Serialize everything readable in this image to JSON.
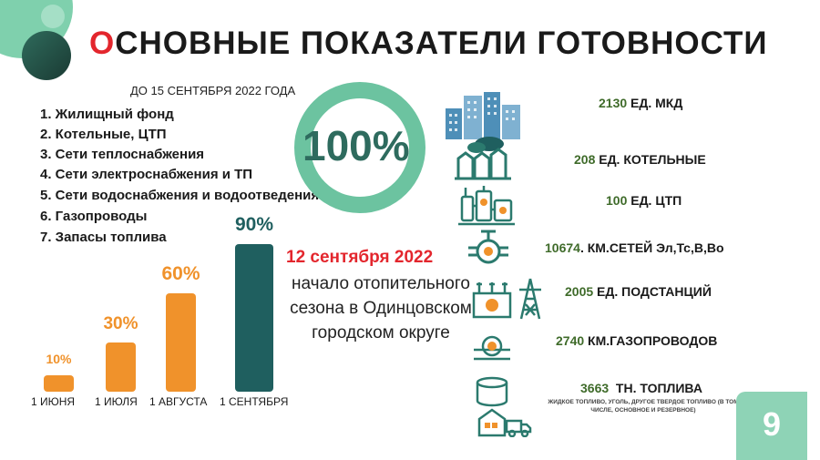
{
  "title": {
    "first_letter": "О",
    "rest": "СНОВНЫЕ ПОКАЗАТЕЛИ ГОТОВНОСТИ"
  },
  "subtitle": "ДО 15 СЕНТЯБРЯ  2022 ГОДА",
  "readiness_list": [
    "1. Жилищный фонд",
    "2. Котельные, ЦТП",
    "3. Сети теплоснабжения",
    "4. Сети электроснабжения и ТП",
    "5. Сети водоснабжения и водоотведения",
    "6. Газопроводы",
    "7. Запасы топлива"
  ],
  "donut": {
    "label": "100%",
    "value": 100
  },
  "colors": {
    "accent_red": "#e3262d",
    "orange": "#f0922b",
    "teal_dark": "#1f5f5f",
    "green_light": "#8ed3b6",
    "green_text": "#3f6b2a"
  },
  "chart_data": {
    "type": "bar",
    "categories": [
      "1 ИЮНЯ",
      "1 ИЮЛЯ",
      "1 АВГУСТА",
      "1 СЕНТЯБРЯ"
    ],
    "values": [
      10,
      30,
      60,
      90
    ],
    "value_labels": [
      "10%",
      "30%",
      "60%",
      "90%"
    ],
    "colors": [
      "#f0922b",
      "#f0922b",
      "#f0922b",
      "#1f5f5f"
    ]
  },
  "heating_start": {
    "date": "12 сентября 2022",
    "text": "начало отопительного сезона в Одинцовском городском округе"
  },
  "stats": [
    {
      "icon": "buildings-icon",
      "number": "2130",
      "label": " ЕД. МКД"
    },
    {
      "icon": "boiler-house-icon",
      "number": "208",
      "label": " ЕД. КОТЕЛЬНЫЕ"
    },
    {
      "icon": "heat-point-icon",
      "number": "100",
      "label": " ЕД. ЦТП"
    },
    {
      "icon": "pipe-valve-icon",
      "number": "10674",
      "label": ". КМ.СЕТЕЙ Эл,Тс,В,Во"
    },
    {
      "icon": "substation-icon",
      "number": "2005",
      "label": " ЕД. ПОДСТАНЦИЙ"
    },
    {
      "icon": "gas-pipe-icon",
      "number": "2740",
      "label": " КМ.ГАЗОПРОВОДОВ"
    },
    {
      "icon": "fuel-storage-icon",
      "number": "3663",
      "label": "  ТН. ТОПЛИВА"
    }
  ],
  "fuel_note": "ЖИДКОЕ ТОПЛИВО, УГОЛЬ, ДРУГОЕ ТВЕРДОЕ ТОПЛИВО (В ТОМ ЧИСЛЕ, ОСНОВНОЕ И РЕЗЕРВНОЕ)",
  "page_number": "9"
}
